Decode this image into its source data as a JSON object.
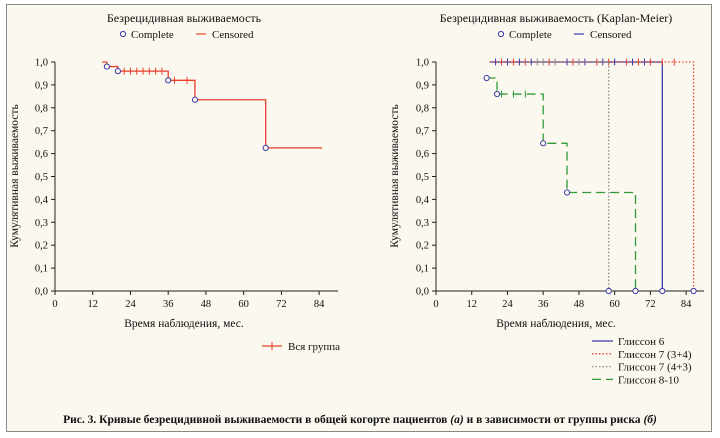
{
  "caption": {
    "text_a": "Рис. 3. Кривые безрецидивной выживаемости в общей когорте пациентов",
    "mark_a": "(а)",
    "text_b": "и в зависимости от группы риска",
    "mark_b": "(б)"
  },
  "chart_data": [
    {
      "type": "line",
      "subtype": "kaplan-meier",
      "title": "Безрецидивная выживаемость",
      "legend_top": [
        "Complete",
        "Censored"
      ],
      "xlabel": "Время наблюдения, мес.",
      "ylabel": "Кумулятивная выживаемость",
      "xlim": [
        0,
        90
      ],
      "ylim": [
        0,
        1.0
      ],
      "xticks": [
        "0",
        "12",
        "24",
        "36",
        "48",
        "60",
        "72",
        "84"
      ],
      "yticks": [
        "0,0",
        "0,1",
        "0,2",
        "0,3",
        "0,4",
        "0,5",
        "0,6",
        "0,7",
        "0,8",
        "0,9",
        "1,0"
      ],
      "series": [
        {
          "name": "Вся группа",
          "color": "#e8402a",
          "dash": "solid",
          "step_x": [
            15,
            16.5,
            20,
            36,
            44.5,
            67,
            85
          ],
          "step_y": [
            1.0,
            0.98,
            0.96,
            0.92,
            0.835,
            0.625,
            0.625
          ],
          "events_x": [
            16.5,
            20,
            36,
            44.5,
            67
          ],
          "events_y": [
            0.98,
            0.96,
            0.92,
            0.835,
            0.625
          ],
          "censored_x": [
            22,
            24,
            26,
            28,
            30,
            32,
            34,
            38,
            42
          ],
          "censored_y": [
            0.96,
            0.96,
            0.96,
            0.96,
            0.96,
            0.96,
            0.96,
            0.92,
            0.92
          ]
        }
      ]
    },
    {
      "type": "line",
      "subtype": "kaplan-meier",
      "title": "Безрецидивная выживаемость (Kaplan-Meier)",
      "legend_top": [
        "Complete",
        "Censored"
      ],
      "xlabel": "Время наблюдения, мес.",
      "ylabel": "Кумулятивная выживаемость",
      "xlim": [
        0,
        90
      ],
      "ylim": [
        0,
        1.0
      ],
      "xticks": [
        "0",
        "12",
        "24",
        "36",
        "48",
        "60",
        "72",
        "84"
      ],
      "yticks": [
        "0,0",
        "0,1",
        "0,2",
        "0,3",
        "0,4",
        "0,5",
        "0,6",
        "0,7",
        "0,8",
        "0,9",
        "1,0"
      ],
      "series": [
        {
          "name": "Глиссон 6",
          "color": "#3a3aa8",
          "dash": "solid",
          "step_x": [
            18,
            76,
            76
          ],
          "step_y": [
            1.0,
            1.0,
            0.0
          ],
          "events_x": [
            76
          ],
          "events_y": [
            0.0
          ],
          "censored_x": [
            20,
            24,
            28,
            32,
            44,
            50,
            56,
            60,
            66,
            70
          ],
          "censored_y": [
            1.0,
            1.0,
            1.0,
            1.0,
            1.0,
            1.0,
            1.0,
            1.0,
            1.0,
            1.0
          ]
        },
        {
          "name": "Глиссон 7 (3+4)",
          "color": "#e8402a",
          "dash": "dotted",
          "step_x": [
            18,
            86.5,
            86.5
          ],
          "step_y": [
            1.0,
            1.0,
            0.0
          ],
          "events_x": [
            86.5
          ],
          "events_y": [
            0.0
          ],
          "censored_x": [
            22,
            26,
            30,
            38,
            46,
            54,
            58,
            64,
            68,
            72,
            76,
            80
          ],
          "censored_y": [
            1.0,
            1.0,
            1.0,
            1.0,
            1.0,
            1.0,
            1.0,
            1.0,
            1.0,
            1.0,
            1.0,
            1.0
          ]
        },
        {
          "name": "Глиссон 7 (4+3)",
          "color": "#8a8a8a",
          "dash": "dotted",
          "step_x": [
            30,
            58,
            58
          ],
          "step_y": [
            1.0,
            1.0,
            0.0
          ],
          "events_x": [
            58
          ],
          "events_y": [
            0.0
          ],
          "censored_x": [
            34,
            36,
            40,
            48
          ],
          "censored_y": [
            1.0,
            1.0,
            1.0,
            1.0
          ]
        },
        {
          "name": "Глиссон 8-10",
          "color": "#2f9a3a",
          "dash": "dashed",
          "step_x": [
            17,
            19.5,
            20.5,
            36,
            44,
            67,
            67
          ],
          "step_y": [
            0.93,
            0.93,
            0.86,
            0.645,
            0.43,
            0.43,
            0.0
          ],
          "events_x": [
            17,
            20.5,
            36,
            44,
            67
          ],
          "events_y": [
            0.93,
            0.86,
            0.645,
            0.43,
            0.0
          ],
          "censored_x": [
            22,
            26,
            30
          ],
          "censored_y": [
            0.86,
            0.86,
            0.86
          ]
        }
      ]
    }
  ]
}
